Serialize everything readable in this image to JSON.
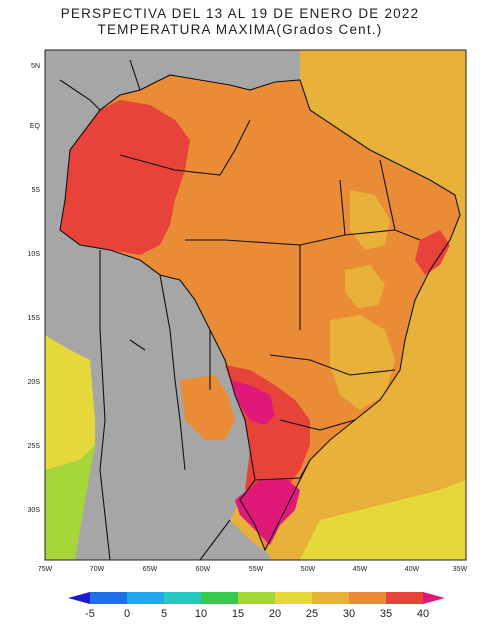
{
  "title": {
    "line1": "PERSPECTIVA DEL 13 AL 19 DE ENERO DE 2022",
    "line2": "TEMPERATURA MAXIMA(Grados Cent.)"
  },
  "axes": {
    "lat_labels": [
      "5N",
      "EQ",
      "5S",
      "10S",
      "15S",
      "20S",
      "25S",
      "30S"
    ],
    "lon_labels": [
      "75W",
      "70W",
      "65W",
      "60W",
      "55W",
      "50W",
      "45W",
      "40W",
      "35W"
    ]
  },
  "colorbar": {
    "ticks": [
      "-5",
      "0",
      "5",
      "10",
      "15",
      "20",
      "25",
      "30",
      "35",
      "40"
    ],
    "colors": [
      "#1a1ad2",
      "#1f6fe8",
      "#22a6ee",
      "#25c9c1",
      "#37c94a",
      "#a6d63a",
      "#e6d83a",
      "#e8b23a",
      "#ea8c36",
      "#e8433b",
      "#e0187a"
    ]
  },
  "palette": {
    "land_other": "#a6a6a6",
    "ocean": "#e8b23a",
    "orange": "#ea8c36",
    "red": "#e8433b",
    "magenta": "#e0187a",
    "yellow": "#e6d83a",
    "green": "#a6d63a"
  }
}
